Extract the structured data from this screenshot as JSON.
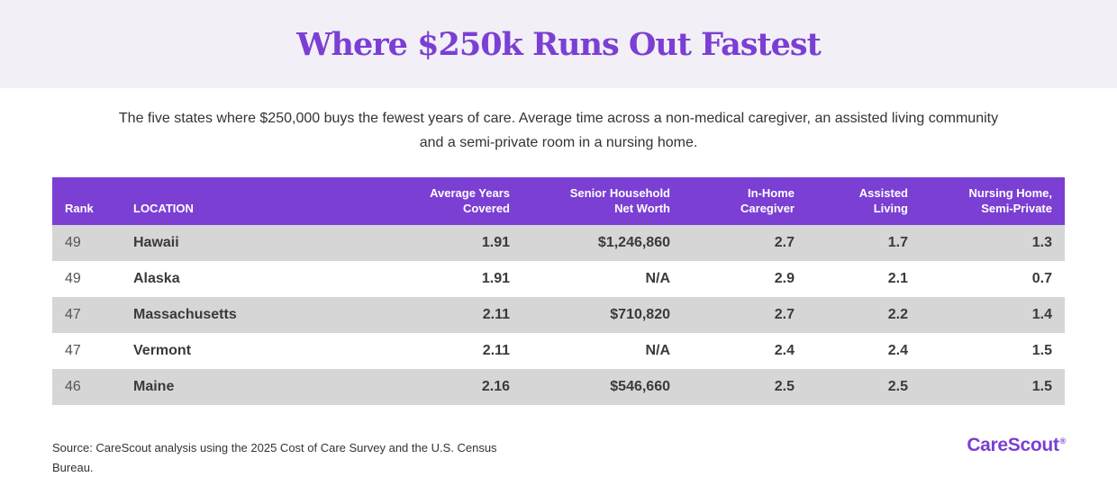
{
  "header": {
    "title": "Where $250k Runs Out Fastest"
  },
  "subtitle": "The five states where $250,000 buys the fewest years of care. Average time across a non-medical caregiver, an assisted living community and a semi-private room in a nursing home.",
  "table": {
    "columns": [
      "Rank",
      "LOCATION",
      "Average Years Covered",
      "Senior Household Net Worth",
      "In-Home Caregiver",
      "Assisted Living",
      "Nursing Home, Semi-Private"
    ],
    "header_lines": {
      "rank": "Rank",
      "location": "LOCATION",
      "avg_years_1": "Average Years",
      "avg_years_2": "Covered",
      "net_worth_1": "Senior Household",
      "net_worth_2": "Net Worth",
      "caregiver_1": "In-Home",
      "caregiver_2": "Caregiver",
      "assisted_1": "Assisted",
      "assisted_2": "Living",
      "nursing_1": "Nursing Home,",
      "nursing_2": "Semi-Private"
    },
    "rows": [
      {
        "rank": "49",
        "location": "Hawaii",
        "avg_years": "1.91",
        "net_worth": "$1,246,860",
        "caregiver": "2.7",
        "assisted": "1.7",
        "nursing": "1.3"
      },
      {
        "rank": "49",
        "location": "Alaska",
        "avg_years": "1.91",
        "net_worth": "N/A",
        "caregiver": "2.9",
        "assisted": "2.1",
        "nursing": "0.7"
      },
      {
        "rank": "47",
        "location": "Massachusetts",
        "avg_years": "2.11",
        "net_worth": "$710,820",
        "caregiver": "2.7",
        "assisted": "2.2",
        "nursing": "1.4"
      },
      {
        "rank": "47",
        "location": "Vermont",
        "avg_years": "2.11",
        "net_worth": "N/A",
        "caregiver": "2.4",
        "assisted": "2.4",
        "nursing": "1.5"
      },
      {
        "rank": "46",
        "location": "Maine",
        "avg_years": "2.16",
        "net_worth": "$546,660",
        "caregiver": "2.5",
        "assisted": "2.5",
        "nursing": "1.5"
      }
    ]
  },
  "footer": {
    "source": "Source: CareScout analysis using the 2025 Cost of Care Survey and the U.S. Census Bureau.",
    "logo_text": "CareScout",
    "logo_mark": "®"
  },
  "colors": {
    "accent": "#7b3fd4",
    "header_band": "#f2eff6",
    "row_shade": "#d6d6d6"
  }
}
